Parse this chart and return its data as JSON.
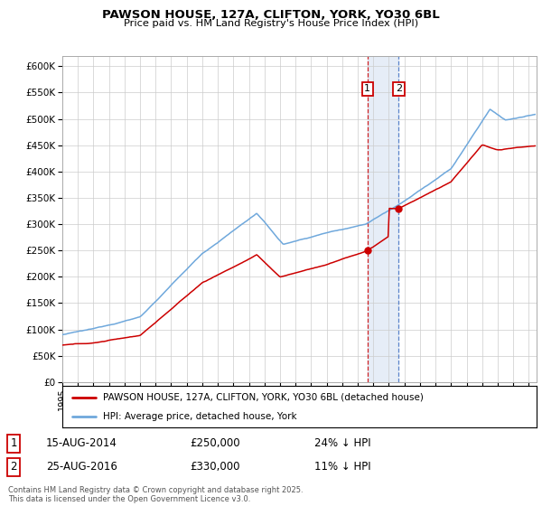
{
  "title": "PAWSON HOUSE, 127A, CLIFTON, YORK, YO30 6BL",
  "subtitle": "Price paid vs. HM Land Registry's House Price Index (HPI)",
  "ylim": [
    0,
    620000
  ],
  "yticks": [
    0,
    50000,
    100000,
    150000,
    200000,
    250000,
    300000,
    350000,
    400000,
    450000,
    500000,
    550000,
    600000
  ],
  "legend_entry1": "PAWSON HOUSE, 127A, CLIFTON, YORK, YO30 6BL (detached house)",
  "legend_entry2": "HPI: Average price, detached house, York",
  "annotation1_date": "15-AUG-2014",
  "annotation1_price": "£250,000",
  "annotation1_hpi": "24% ↓ HPI",
  "annotation2_date": "25-AUG-2016",
  "annotation2_price": "£330,000",
  "annotation2_hpi": "11% ↓ HPI",
  "footer": "Contains HM Land Registry data © Crown copyright and database right 2025.\nThis data is licensed under the Open Government Licence v3.0.",
  "hpi_color": "#6fa8dc",
  "price_color": "#cc0000",
  "vline1_color": "#cc0000",
  "vline2_color": "#4472c4",
  "shade_color": "#dce6f4",
  "background_color": "#ffffff",
  "grid_color": "#cccccc",
  "t1_year": 2014.625,
  "t2_year": 2016.625,
  "t1_price": 250000,
  "t2_price": 330000,
  "xlim_left": 1995,
  "xlim_right": 2025.5
}
